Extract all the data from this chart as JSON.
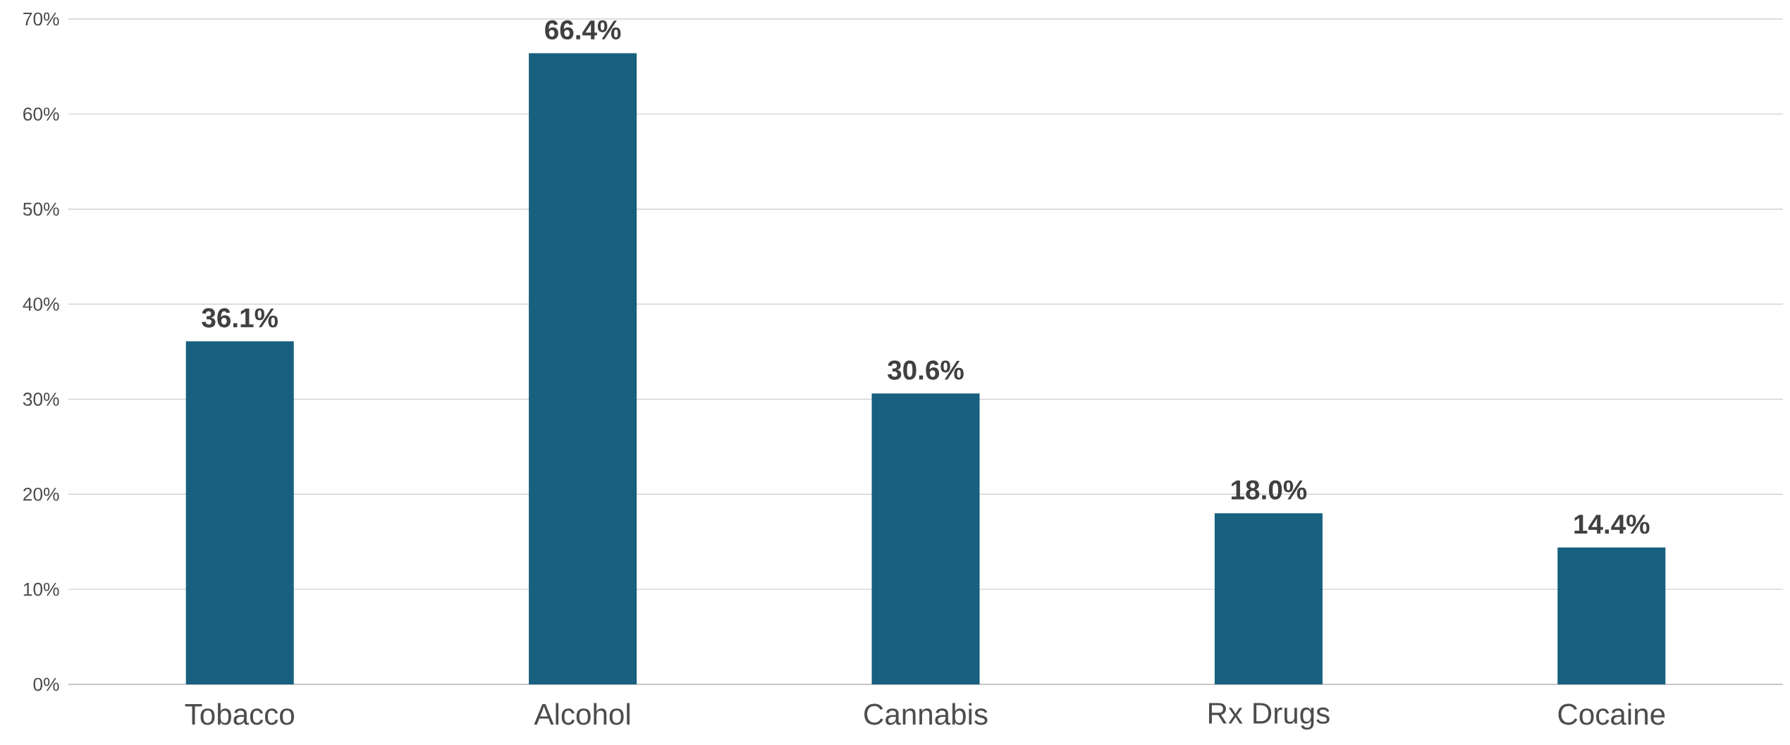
{
  "chart_data": {
    "type": "bar",
    "categories": [
      "Tobacco",
      "Alcohol",
      "Cannabis",
      "Rx Drugs",
      "Cocaine"
    ],
    "values": [
      36.1,
      66.4,
      30.6,
      18.0,
      14.4
    ],
    "value_labels": [
      "36.1%",
      "66.4%",
      "30.6%",
      "18.0%",
      "14.4%"
    ],
    "color": "#17607f",
    "ylim": [
      0,
      70
    ],
    "yticks": [
      {
        "value": 0,
        "label": "0%"
      },
      {
        "value": 10,
        "label": "10%"
      },
      {
        "value": 20,
        "label": "20%"
      },
      {
        "value": 30,
        "label": "30%"
      },
      {
        "value": 40,
        "label": "40%"
      },
      {
        "value": 50,
        "label": "50%"
      },
      {
        "value": 60,
        "label": "60%"
      },
      {
        "value": 70,
        "label": "70%"
      }
    ],
    "grid": "y"
  }
}
